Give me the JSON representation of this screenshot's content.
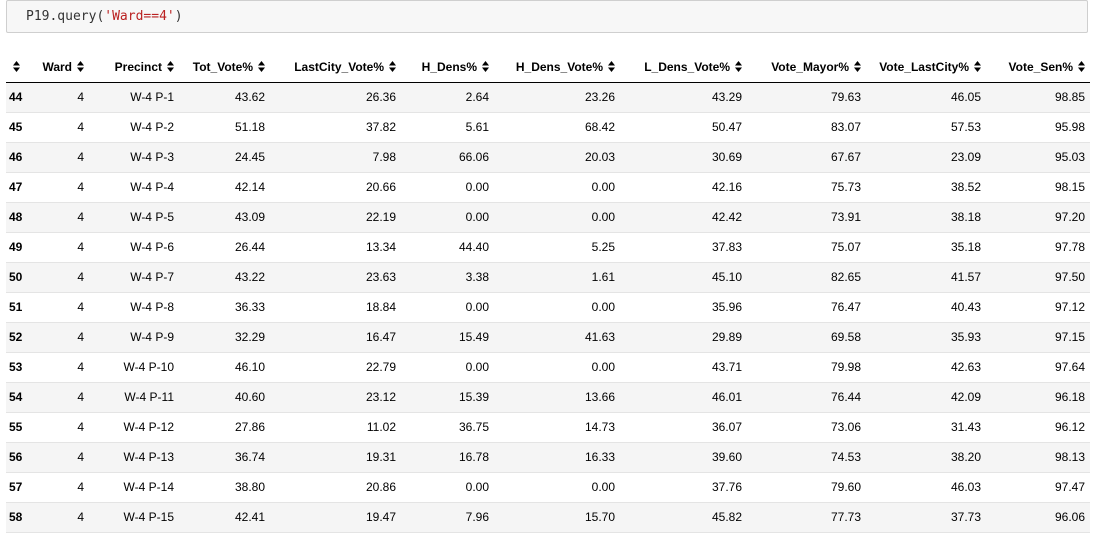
{
  "code": {
    "prefix": "P19.query(",
    "string": "'Ward==4'",
    "suffix": ")"
  },
  "table": {
    "columns": [
      "Ward",
      "Precinct",
      "Tot_Vote%",
      "LastCity_Vote%",
      "H_Dens%",
      "H_Dens_Vote%",
      "L_Dens_Vote%",
      "Vote_Mayor%",
      "Vote_LastCity%",
      "Vote_Sen%"
    ],
    "rows": [
      {
        "index": "44",
        "cells": [
          "4",
          "W-4 P-1",
          "43.62",
          "26.36",
          "2.64",
          "23.26",
          "43.29",
          "79.63",
          "46.05",
          "98.85"
        ]
      },
      {
        "index": "45",
        "cells": [
          "4",
          "W-4 P-2",
          "51.18",
          "37.82",
          "5.61",
          "68.42",
          "50.47",
          "83.07",
          "57.53",
          "95.98"
        ]
      },
      {
        "index": "46",
        "cells": [
          "4",
          "W-4 P-3",
          "24.45",
          "7.98",
          "66.06",
          "20.03",
          "30.69",
          "67.67",
          "23.09",
          "95.03"
        ]
      },
      {
        "index": "47",
        "cells": [
          "4",
          "W-4 P-4",
          "42.14",
          "20.66",
          "0.00",
          "0.00",
          "42.16",
          "75.73",
          "38.52",
          "98.15"
        ]
      },
      {
        "index": "48",
        "cells": [
          "4",
          "W-4 P-5",
          "43.09",
          "22.19",
          "0.00",
          "0.00",
          "42.42",
          "73.91",
          "38.18",
          "97.20"
        ]
      },
      {
        "index": "49",
        "cells": [
          "4",
          "W-4 P-6",
          "26.44",
          "13.34",
          "44.40",
          "5.25",
          "37.83",
          "75.07",
          "35.18",
          "97.78"
        ]
      },
      {
        "index": "50",
        "cells": [
          "4",
          "W-4 P-7",
          "43.22",
          "23.63",
          "3.38",
          "1.61",
          "45.10",
          "82.65",
          "41.57",
          "97.50"
        ]
      },
      {
        "index": "51",
        "cells": [
          "4",
          "W-4 P-8",
          "36.33",
          "18.84",
          "0.00",
          "0.00",
          "35.96",
          "76.47",
          "40.43",
          "97.12"
        ]
      },
      {
        "index": "52",
        "cells": [
          "4",
          "W-4 P-9",
          "32.29",
          "16.47",
          "15.49",
          "41.63",
          "29.89",
          "69.58",
          "35.93",
          "97.15"
        ]
      },
      {
        "index": "53",
        "cells": [
          "4",
          "W-4 P-10",
          "46.10",
          "22.79",
          "0.00",
          "0.00",
          "43.71",
          "79.98",
          "42.63",
          "97.64"
        ]
      },
      {
        "index": "54",
        "cells": [
          "4",
          "W-4 P-11",
          "40.60",
          "23.12",
          "15.39",
          "13.66",
          "46.01",
          "76.44",
          "42.09",
          "96.18"
        ]
      },
      {
        "index": "55",
        "cells": [
          "4",
          "W-4 P-12",
          "27.86",
          "11.02",
          "36.75",
          "14.73",
          "36.07",
          "73.06",
          "31.43",
          "96.12"
        ]
      },
      {
        "index": "56",
        "cells": [
          "4",
          "W-4 P-13",
          "36.74",
          "19.31",
          "16.78",
          "16.33",
          "39.60",
          "74.53",
          "38.20",
          "98.13"
        ]
      },
      {
        "index": "57",
        "cells": [
          "4",
          "W-4 P-14",
          "38.80",
          "20.86",
          "0.00",
          "0.00",
          "37.76",
          "79.60",
          "46.03",
          "97.47"
        ]
      },
      {
        "index": "58",
        "cells": [
          "4",
          "W-4 P-15",
          "42.41",
          "19.47",
          "7.96",
          "15.70",
          "45.82",
          "77.73",
          "37.73",
          "96.06"
        ]
      }
    ]
  },
  "icons": {
    "sort": "sort-arrows-icon"
  },
  "colors": {
    "string_literal": "#ba2121",
    "row_stripe": "#f5f5f5",
    "input_bg": "#f7f7f7"
  }
}
